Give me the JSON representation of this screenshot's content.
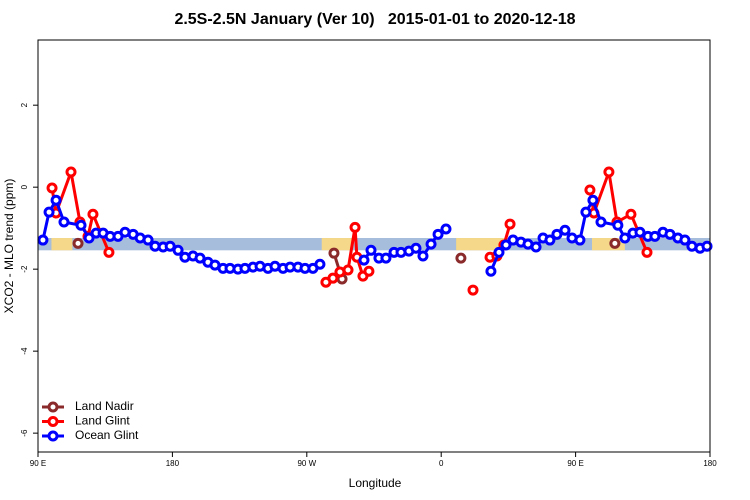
{
  "chart_data": {
    "type": "line",
    "title": "2.5S-2.5N January (Ver 10)   2015-01-01 to 2020-12-18",
    "xlabel": "Longitude",
    "ylabel": "XCO2 - MLO trend (ppm)",
    "xlim": [
      90,
      540
    ],
    "ylim": [
      -6.46,
      3.59
    ],
    "xticks": [
      {
        "value": 90,
        "label": "90 E"
      },
      180,
      {
        "value": 270,
        "label": "90 W"
      },
      {
        "value": 360,
        "label": "0"
      },
      {
        "value": 450,
        "label": "90 E"
      },
      {
        "value": 540,
        "label": "180"
      }
    ],
    "yticks": [
      2,
      0,
      -2,
      -4,
      -6
    ],
    "legend": "bottom-left",
    "band": {
      "ylim": [
        -1.54,
        -1.24
      ],
      "color": "#a6bddb",
      "land_color": "#f5d88a",
      "land_x": [
        [
          99,
          113
        ],
        [
          280,
          300
        ],
        [
          370,
          403
        ],
        [
          461,
          483
        ]
      ]
    },
    "series": [
      {
        "name": "Land Nadir",
        "color": "#8b2a2a",
        "x": [
          116.8,
          null,
          288.2,
          293.6,
          null,
          373.2,
          null,
          476.3
        ],
        "values": [
          -1.37,
          null,
          -1.61,
          -2.24,
          null,
          -1.73,
          null,
          -1.37
        ]
      },
      {
        "name": "Land Glint",
        "color": "#ff0000",
        "x": [
          99.4,
          102.1,
          112.1,
          118.1,
          123.5,
          126.8,
          137.5,
          null,
          282.8,
          287.5,
          292.2,
          297.6,
          302.3,
          303.6,
          307.6,
          311.6,
          null,
          381.3,
          null,
          392.7,
          397.3,
          402.0,
          406.1,
          null,
          459.6,
          462.3,
          472.3,
          477.7,
          487.1,
          497.8
        ],
        "values": [
          -0.02,
          -0.63,
          0.37,
          -0.85,
          -1.2,
          -0.66,
          -1.59,
          null,
          -2.32,
          -2.22,
          -2.07,
          -2.02,
          -0.98,
          -1.71,
          -2.17,
          -2.05,
          null,
          -2.51,
          null,
          -1.71,
          -1.68,
          -1.41,
          -0.9,
          null,
          -0.07,
          -0.63,
          0.37,
          -0.85,
          -0.66,
          -1.59
        ]
      },
      {
        "name": "Ocean Glint",
        "color": "#0000ff",
        "x": [
          93.3,
          97.4,
          102.1,
          107.4,
          118.8,
          124.2,
          128.9,
          133.6,
          138.3,
          143.6,
          148.3,
          153.7,
          158.4,
          163.7,
          168.4,
          173.8,
          178.5,
          183.8,
          188.4,
          193.8,
          198.5,
          203.8,
          208.5,
          213.9,
          218.6,
          223.9,
          228.6,
          234.0,
          238.7,
          244.0,
          248.7,
          254.1,
          258.8,
          264.1,
          268.8,
          274.1,
          278.8,
          null,
          308.3,
          313.0,
          318.3,
          323.0,
          328.4,
          333.1,
          338.4,
          343.1,
          347.8,
          353.2,
          357.9,
          363.2,
          null,
          393.3,
          398.7,
          403.4,
          408.1,
          413.4,
          418.1,
          423.5,
          428.2,
          432.8,
          437.5,
          442.9,
          447.6,
          452.9,
          456.9,
          461.6,
          467.0,
          478.3,
          483.0,
          488.4,
          493.1,
          498.4,
          503.1,
          508.5,
          513.2,
          518.5,
          523.2,
          527.9,
          533.3,
          538.0
        ],
        "values": [
          -1.29,
          -0.61,
          -0.32,
          -0.85,
          -0.93,
          -1.24,
          -1.12,
          -1.12,
          -1.2,
          -1.2,
          -1.1,
          -1.15,
          -1.24,
          -1.29,
          -1.44,
          -1.46,
          -1.44,
          -1.54,
          -1.71,
          -1.68,
          -1.73,
          -1.83,
          -1.9,
          -1.98,
          -1.98,
          -2.0,
          -1.98,
          -1.95,
          -1.93,
          -1.98,
          -1.93,
          -1.98,
          -1.95,
          -1.95,
          -1.98,
          -1.98,
          -1.88,
          null,
          -1.78,
          -1.54,
          -1.73,
          -1.73,
          -1.59,
          -1.59,
          -1.56,
          -1.49,
          -1.68,
          -1.39,
          -1.15,
          -1.02,
          null,
          -2.05,
          -1.59,
          -1.41,
          -1.29,
          -1.34,
          -1.39,
          -1.46,
          -1.24,
          -1.29,
          -1.15,
          -1.05,
          -1.24,
          -1.29,
          -0.61,
          -0.32,
          -0.85,
          -0.93,
          -1.24,
          -1.12,
          -1.1,
          -1.2,
          -1.2,
          -1.1,
          -1.15,
          -1.24,
          -1.29,
          -1.44,
          -1.49,
          -1.44
        ]
      }
    ]
  }
}
